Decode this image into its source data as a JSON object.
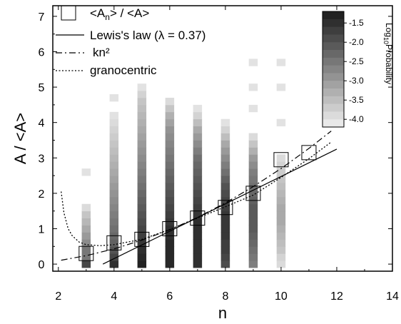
{
  "chart_data": {
    "type": "heatmap",
    "xlabel": "n",
    "ylabel": "A / <A>",
    "xlim": [
      1.8,
      14
    ],
    "ylim": [
      -0.2,
      7.3
    ],
    "xticks": [
      "2",
      "4",
      "6",
      "8",
      "10",
      "12",
      "14"
    ],
    "yticks": [
      "0",
      "1",
      "2",
      "3",
      "4",
      "5",
      "6",
      "7"
    ],
    "bin_height": 0.2,
    "heatmap_columns": [
      {
        "n": 3,
        "bins": [
          [
            0.0,
            -1.8
          ],
          [
            0.2,
            -2.5
          ],
          [
            0.4,
            -2.5
          ],
          [
            0.6,
            -2.8
          ],
          [
            0.8,
            -3.0
          ],
          [
            1.0,
            -3.2
          ],
          [
            1.2,
            -3.4
          ],
          [
            1.4,
            -3.6
          ],
          [
            1.6,
            -3.9
          ],
          [
            2.6,
            -4.0
          ]
        ]
      },
      {
        "n": 4,
        "bins": [
          [
            0.0,
            -1.5
          ],
          [
            0.2,
            -1.8
          ],
          [
            0.4,
            -2.0
          ],
          [
            0.6,
            -2.2
          ],
          [
            0.8,
            -2.3
          ],
          [
            1.0,
            -2.4
          ],
          [
            1.2,
            -2.5
          ],
          [
            1.4,
            -2.6
          ],
          [
            1.6,
            -2.7
          ],
          [
            1.8,
            -2.8
          ],
          [
            2.0,
            -2.9
          ],
          [
            2.2,
            -3.0
          ],
          [
            2.4,
            -3.1
          ],
          [
            2.6,
            -3.2
          ],
          [
            2.8,
            -3.3
          ],
          [
            3.0,
            -3.4
          ],
          [
            3.2,
            -3.5
          ],
          [
            3.4,
            -3.6
          ],
          [
            3.6,
            -3.7
          ],
          [
            3.8,
            -3.8
          ],
          [
            4.0,
            -3.9
          ],
          [
            4.2,
            -4.0
          ],
          [
            4.7,
            -4.0
          ]
        ]
      },
      {
        "n": 5,
        "bins": [
          [
            0.0,
            -1.3
          ],
          [
            0.2,
            -1.4
          ],
          [
            0.4,
            -1.5
          ],
          [
            0.6,
            -1.6
          ],
          [
            0.8,
            -1.7
          ],
          [
            1.0,
            -1.8
          ],
          [
            1.2,
            -1.9
          ],
          [
            1.4,
            -2.0
          ],
          [
            1.6,
            -2.1
          ],
          [
            1.8,
            -2.2
          ],
          [
            2.0,
            -2.3
          ],
          [
            2.2,
            -2.4
          ],
          [
            2.4,
            -2.5
          ],
          [
            2.6,
            -2.6
          ],
          [
            2.8,
            -2.7
          ],
          [
            3.0,
            -2.8
          ],
          [
            3.2,
            -2.9
          ],
          [
            3.4,
            -3.0
          ],
          [
            3.6,
            -3.1
          ],
          [
            3.8,
            -3.2
          ],
          [
            4.0,
            -3.3
          ],
          [
            4.2,
            -3.4
          ],
          [
            4.4,
            -3.5
          ],
          [
            4.6,
            -3.6
          ],
          [
            4.8,
            -3.8
          ],
          [
            5.0,
            -4.0
          ]
        ]
      },
      {
        "n": 6,
        "bins": [
          [
            0.0,
            -1.4
          ],
          [
            0.2,
            -1.4
          ],
          [
            0.4,
            -1.4
          ],
          [
            0.6,
            -1.4
          ],
          [
            0.8,
            -1.5
          ],
          [
            1.0,
            -1.5
          ],
          [
            1.2,
            -1.6
          ],
          [
            1.4,
            -1.7
          ],
          [
            1.6,
            -1.8
          ],
          [
            1.8,
            -1.9
          ],
          [
            2.0,
            -2.0
          ],
          [
            2.2,
            -2.1
          ],
          [
            2.4,
            -2.2
          ],
          [
            2.6,
            -2.3
          ],
          [
            2.8,
            -2.4
          ],
          [
            3.0,
            -2.5
          ],
          [
            3.2,
            -2.6
          ],
          [
            3.4,
            -2.7
          ],
          [
            3.6,
            -2.8
          ],
          [
            3.8,
            -2.9
          ],
          [
            4.0,
            -3.1
          ],
          [
            4.2,
            -3.3
          ],
          [
            4.4,
            -3.6
          ],
          [
            4.6,
            -3.9
          ]
        ]
      },
      {
        "n": 7,
        "bins": [
          [
            0.0,
            -1.5
          ],
          [
            0.2,
            -1.5
          ],
          [
            0.4,
            -1.5
          ],
          [
            0.6,
            -1.5
          ],
          [
            0.8,
            -1.5
          ],
          [
            1.0,
            -1.5
          ],
          [
            1.2,
            -1.5
          ],
          [
            1.4,
            -1.6
          ],
          [
            1.6,
            -1.7
          ],
          [
            1.8,
            -1.8
          ],
          [
            2.0,
            -1.9
          ],
          [
            2.2,
            -2.0
          ],
          [
            2.4,
            -2.1
          ],
          [
            2.6,
            -2.2
          ],
          [
            2.8,
            -2.3
          ],
          [
            3.0,
            -2.4
          ],
          [
            3.2,
            -2.6
          ],
          [
            3.4,
            -2.8
          ],
          [
            3.6,
            -3.0
          ],
          [
            3.8,
            -3.2
          ],
          [
            4.0,
            -3.5
          ],
          [
            4.2,
            -3.8
          ],
          [
            4.4,
            -4.0
          ]
        ]
      },
      {
        "n": 8,
        "bins": [
          [
            0.0,
            -1.9
          ],
          [
            0.2,
            -1.8
          ],
          [
            0.4,
            -1.7
          ],
          [
            0.6,
            -1.7
          ],
          [
            0.8,
            -1.6
          ],
          [
            1.0,
            -1.6
          ],
          [
            1.2,
            -1.6
          ],
          [
            1.4,
            -1.6
          ],
          [
            1.6,
            -1.7
          ],
          [
            1.8,
            -1.8
          ],
          [
            2.0,
            -1.9
          ],
          [
            2.2,
            -2.0
          ],
          [
            2.4,
            -2.2
          ],
          [
            2.6,
            -2.4
          ],
          [
            2.8,
            -2.6
          ],
          [
            3.0,
            -2.8
          ],
          [
            3.2,
            -3.0
          ],
          [
            3.4,
            -3.2
          ],
          [
            3.6,
            -3.5
          ],
          [
            3.8,
            -3.8
          ],
          [
            4.0,
            -4.0
          ]
        ]
      },
      {
        "n": 9,
        "bins": [
          [
            0.0,
            -2.6
          ],
          [
            0.2,
            -2.5
          ],
          [
            0.4,
            -2.4
          ],
          [
            0.6,
            -2.3
          ],
          [
            0.8,
            -2.2
          ],
          [
            1.0,
            -2.1
          ],
          [
            1.2,
            -2.1
          ],
          [
            1.4,
            -2.1
          ],
          [
            1.6,
            -2.1
          ],
          [
            1.8,
            -2.2
          ],
          [
            2.0,
            -2.3
          ],
          [
            2.2,
            -2.4
          ],
          [
            2.4,
            -2.5
          ],
          [
            2.6,
            -2.6
          ],
          [
            2.8,
            -2.8
          ],
          [
            3.0,
            -3.0
          ],
          [
            3.2,
            -3.3
          ],
          [
            3.4,
            -3.6
          ],
          [
            3.6,
            -3.9
          ],
          [
            4.4,
            -4.0
          ],
          [
            5.0,
            -4.0
          ],
          [
            5.7,
            -4.0
          ]
        ]
      },
      {
        "n": 10,
        "bins": [
          [
            0.0,
            -3.9
          ],
          [
            0.2,
            -3.8
          ],
          [
            0.4,
            -3.6
          ],
          [
            0.6,
            -3.5
          ],
          [
            0.8,
            -3.4
          ],
          [
            1.0,
            -3.3
          ],
          [
            1.2,
            -3.2
          ],
          [
            1.4,
            -3.2
          ],
          [
            1.6,
            -3.2
          ],
          [
            1.8,
            -3.3
          ],
          [
            2.0,
            -3.4
          ],
          [
            2.2,
            -3.5
          ],
          [
            2.4,
            -3.6
          ],
          [
            2.6,
            -3.7
          ],
          [
            2.8,
            -3.8
          ],
          [
            3.0,
            -3.9
          ],
          [
            4.0,
            -4.0
          ],
          [
            5.0,
            -4.0
          ],
          [
            5.7,
            -4.0
          ]
        ]
      }
    ],
    "series": [
      {
        "name": "<A_n> / <A>",
        "type": "scatter",
        "marker": "square",
        "x": [
          3,
          4,
          5,
          6,
          7,
          8,
          9,
          10,
          11
        ],
        "y": [
          0.3,
          0.6,
          0.7,
          1.0,
          1.3,
          1.6,
          2.0,
          2.95,
          3.15
        ]
      },
      {
        "name": "Lewis's law (λ = 0.37)",
        "type": "line",
        "style": "solid",
        "x": [
          3.6,
          12
        ],
        "y": [
          0.0,
          3.25
        ]
      },
      {
        "name": "kn²",
        "type": "line",
        "style": "dashdot",
        "x": [
          2.1,
          3,
          4,
          5,
          6,
          7,
          8,
          9,
          10,
          11,
          11.8
        ],
        "y": [
          0.11,
          0.24,
          0.43,
          0.68,
          0.97,
          1.32,
          1.73,
          2.19,
          2.7,
          3.27,
          3.76
        ]
      },
      {
        "name": "granocentric",
        "type": "line",
        "style": "dotted",
        "x": [
          2.1,
          2.2,
          2.35,
          2.5,
          2.75,
          3.0,
          3.5,
          4,
          5,
          6,
          7,
          8,
          9,
          10,
          11,
          11.8
        ],
        "y": [
          2.05,
          1.45,
          1.0,
          0.8,
          0.62,
          0.55,
          0.52,
          0.55,
          0.7,
          0.98,
          1.3,
          1.62,
          1.95,
          2.45,
          2.98,
          3.45
        ]
      }
    ],
    "colorbar": {
      "title": "Log10 Probability",
      "title_main": "Log",
      "title_sub": "10",
      "title_rest": "Probability",
      "range": [
        -4.2,
        -1.2
      ],
      "ticks": [
        "-1.5",
        "-2.0",
        "-2.5",
        "-3.0",
        "-3.5",
        "-4.0"
      ],
      "tick_values": [
        -1.5,
        -2.0,
        -2.5,
        -3.0,
        -3.5,
        -4.0
      ],
      "color_dark": "#1a1a1a",
      "color_light": "#f0f0f0"
    },
    "legend": {
      "placement": "top-left",
      "entries": [
        {
          "label_main": "<A",
          "label_sub": "n",
          "label_rest": "> / <A>"
        },
        {
          "label": "Lewis's law (λ = 0.37)"
        },
        {
          "label": "kn²"
        },
        {
          "label": "granocentric"
        }
      ]
    },
    "grid": false
  }
}
